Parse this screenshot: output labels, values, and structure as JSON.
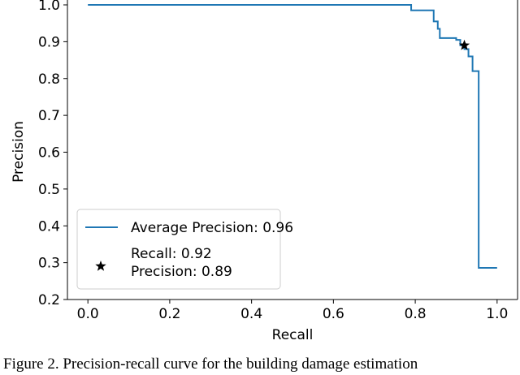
{
  "chart_data": {
    "type": "line",
    "x_label": "Recall",
    "y_label": "Precision",
    "xlim": [
      -0.05,
      1.05
    ],
    "xticks": [
      {
        "value": 0,
        "label": "0.0"
      },
      0.2,
      0.4,
      0.6,
      0.8,
      {
        "value": 1,
        "label": "1.0"
      }
    ],
    "ylim": [
      0.2,
      1.0
    ],
    "yticks": [
      0.2,
      0.3,
      0.4,
      0.5,
      0.6,
      0.7,
      0.8,
      0.9,
      {
        "value": 1,
        "label": "1.0"
      }
    ],
    "step": "post",
    "series": [
      {
        "name": "Average Precision: 0.96",
        "color": "#1f77b4",
        "x": [
          0,
          0.79,
          0.845,
          0.855,
          0.86,
          0.9,
          0.91,
          0.92,
          0.93,
          0.94,
          0.955,
          1.0
        ],
        "values": [
          1.0,
          0.985,
          0.955,
          0.935,
          0.91,
          0.905,
          0.89,
          0.88,
          0.86,
          0.82,
          0.286,
          0.286
        ]
      }
    ],
    "point": {
      "name": [
        "Recall: 0.92",
        "Precision: 0.89"
      ],
      "x": 0.92,
      "y": 0.89,
      "color": "#000000"
    },
    "legend": "lower left",
    "caption": "Figure 2. Precision-recall curve for the building damage estimation"
  }
}
